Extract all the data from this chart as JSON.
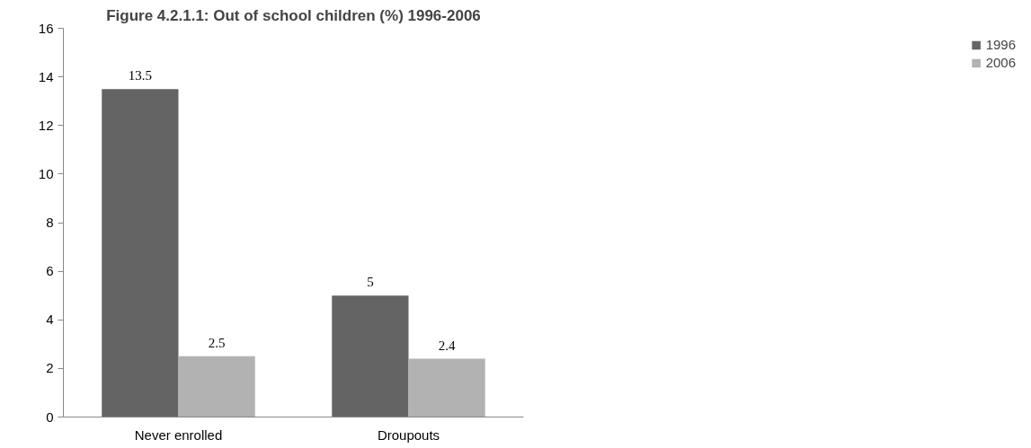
{
  "chart_data": {
    "type": "bar",
    "title": "Figure 4.2.1.1: Out of school children (%) 1996-2006",
    "categories": [
      "Never enrolled",
      "Droupouts"
    ],
    "series": [
      {
        "name": "1996",
        "color": "#646464",
        "values": [
          13.5,
          5
        ]
      },
      {
        "name": "2006",
        "color": "#b2b2b2",
        "values": [
          2.5,
          2.4
        ]
      }
    ],
    "ylim": [
      0,
      16
    ],
    "yticks": [
      0,
      2,
      4,
      6,
      8,
      10,
      12,
      14,
      16
    ],
    "grid": false,
    "legend": "right",
    "data_labels": true
  }
}
